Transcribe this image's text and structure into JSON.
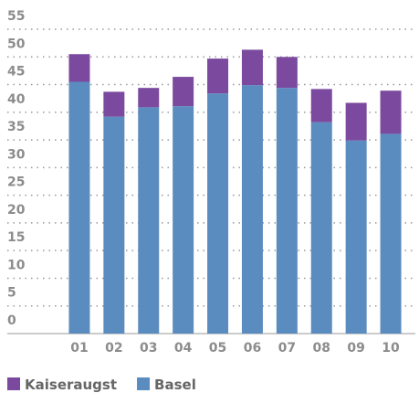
{
  "chart_data": {
    "type": "stacked_bar",
    "categories": [
      "01",
      "02",
      "03",
      "04",
      "05",
      "06",
      "07",
      "08",
      "09",
      "10"
    ],
    "series": [
      {
        "name": "Basel",
        "color": "#5b8cbf",
        "values": [
          45.5,
          39.2,
          40.9,
          41.1,
          43.4,
          44.9,
          44.4,
          38.2,
          34.9,
          36.1
        ]
      },
      {
        "name": "Kaiseraugst",
        "color": "#7b4a9e",
        "values": [
          5.0,
          4.5,
          3.5,
          5.3,
          6.3,
          6.4,
          5.6,
          6.0,
          6.8,
          7.8
        ]
      }
    ],
    "ylim": [
      0,
      55
    ],
    "yticks": [
      0,
      5,
      10,
      15,
      20,
      25,
      30,
      35,
      40,
      45,
      50,
      55
    ],
    "grid": true
  }
}
